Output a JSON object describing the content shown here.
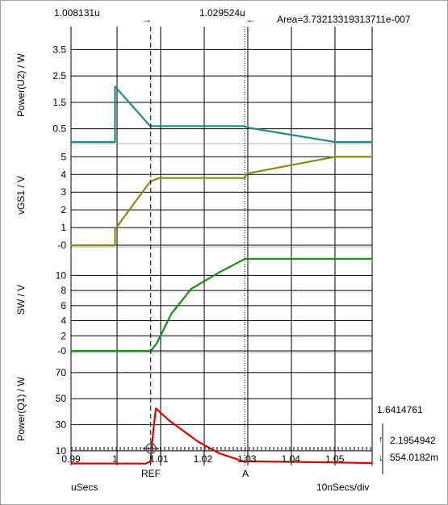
{
  "window": {
    "border_color": "#a0a0a0"
  },
  "cursors": {
    "ref_value": "1.008131u",
    "a_value": "1.029524u",
    "area_readout": "Area=3.73213319313711e-007",
    "ref_label": "REF",
    "a_label": "A",
    "ref_x": 1.008131,
    "a_x": 1.029524
  },
  "measurements": {
    "upper": "1.6414761",
    "delta": "2.1954942",
    "lower": "554.0182m"
  },
  "footer": {
    "x_unit": "uSecs",
    "division": "10nSecs/div"
  },
  "chart_data": [
    {
      "type": "line",
      "ylabel": "Power(U2) / W",
      "yticks": [
        "3.5",
        "2.5",
        "1.5",
        "0.5"
      ],
      "ytick_values": [
        3.5,
        2.5,
        1.5,
        0.5
      ],
      "ylim": [
        0,
        4
      ],
      "xlim": [
        0.99,
        1.0585
      ],
      "color": "#1f8a8a",
      "x": [
        0.99,
        1.0,
        1.0,
        1.008,
        1.029524,
        1.03,
        1.05,
        1.0585
      ],
      "y": [
        0.0,
        0.0,
        2.1,
        0.6,
        0.6,
        0.55,
        0.0,
        0.0
      ]
    },
    {
      "type": "line",
      "ylabel": "vGS1 / V",
      "yticks": [
        "5",
        "4",
        "3",
        "2",
        "1",
        "-0"
      ],
      "ytick_values": [
        5,
        4,
        3,
        2,
        1,
        0
      ],
      "ylim": [
        0,
        5.2
      ],
      "xlim": [
        0.99,
        1.0585
      ],
      "color": "#8a8a10",
      "x": [
        0.99,
        1.0,
        1.0,
        1.008,
        1.01,
        1.029524,
        1.03,
        1.05,
        1.0585
      ],
      "y": [
        0.0,
        0.0,
        0.9,
        3.6,
        3.8,
        3.8,
        4.05,
        5.0,
        5.0
      ]
    },
    {
      "type": "line",
      "ylabel": "SW / V",
      "yticks": [
        "10",
        "8",
        "6",
        "4",
        "2",
        "-0"
      ],
      "ytick_values": [
        10,
        8,
        6,
        4,
        2,
        0
      ],
      "ylim": [
        0,
        12.5
      ],
      "xlim": [
        0.99,
        1.0585
      ],
      "color": "#1a8a1a",
      "x": [
        0.99,
        1.008131,
        1.0095,
        1.0128,
        1.0173,
        1.0237,
        1.0296,
        1.0585
      ],
      "y": [
        0.0,
        0.0,
        1.0,
        4.9,
        8.2,
        10.4,
        12.2,
        12.2
      ]
    },
    {
      "type": "line",
      "ylabel": "Power(Q1) / W",
      "yticks": [
        "70",
        "50",
        "30",
        "10"
      ],
      "ytick_values": [
        70,
        50,
        30,
        10
      ],
      "ylim": [
        0,
        78
      ],
      "xlim": [
        0.99,
        1.0585
      ],
      "color": "#e00000",
      "x": [
        0.99,
        1.007,
        1.0081,
        1.0087,
        1.0093,
        1.0124,
        1.0189,
        1.0238,
        1.029524,
        1.031,
        1.0585
      ],
      "y": [
        0.3,
        0.2,
        2.0,
        25.0,
        42.5,
        33.0,
        17.0,
        8.0,
        1.6,
        2.0,
        0.6
      ],
      "xticks": [
        "0.99",
        "1",
        "1.01",
        "1.02",
        "1.03",
        "1.04",
        "1.05"
      ],
      "xtick_values": [
        0.99,
        1.0,
        1.01,
        1.02,
        1.03,
        1.04,
        1.05
      ]
    }
  ]
}
